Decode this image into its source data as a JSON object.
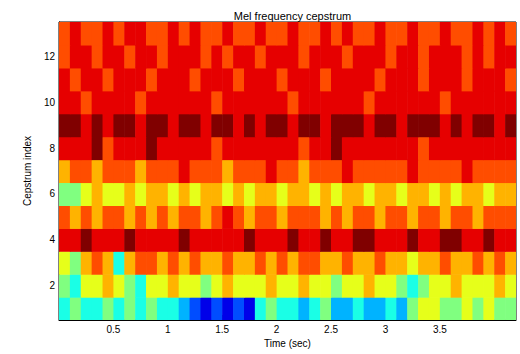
{
  "chart_data": {
    "type": "heatmap",
    "title": "Mel frequency cepstrum",
    "x_label": "Time (sec)",
    "y_label": "Cepstrum index",
    "x_edges": [
      0,
      0.1,
      0.2,
      0.3,
      0.4,
      0.5,
      0.6,
      0.7,
      0.8,
      0.9,
      1,
      1.1,
      1.2,
      1.3,
      1.4,
      1.5,
      1.6,
      1.7,
      1.8,
      1.9,
      2,
      2.1,
      2.2,
      2.3,
      2.4,
      2.5,
      2.6,
      2.7,
      2.8,
      2.9,
      3,
      3.1,
      3.2,
      3.3,
      3.4,
      3.5,
      3.6,
      3.7,
      3.8,
      3.9,
      4,
      4.1,
      4.2
    ],
    "y": [
      1,
      2,
      3,
      4,
      5,
      6,
      7,
      8,
      9,
      10,
      11,
      12,
      13
    ],
    "z": [
      [
        4,
        5,
        4,
        4,
        5,
        4,
        5,
        4,
        5,
        4,
        4,
        3,
        2,
        1,
        2,
        1,
        2,
        1,
        4,
        5,
        4,
        4,
        3,
        4,
        5,
        3,
        3,
        4,
        3,
        3,
        4,
        3,
        5,
        6,
        6,
        5,
        5,
        6,
        5,
        6,
        5,
        5
      ],
      [
        5,
        4,
        6,
        6,
        7,
        6,
        5,
        4,
        6,
        6,
        7,
        6,
        6,
        5,
        6,
        7,
        6,
        6,
        6,
        7,
        6,
        6,
        7,
        6,
        6,
        5,
        6,
        6,
        7,
        6,
        6,
        5,
        4,
        5,
        6,
        6,
        7,
        6,
        6,
        6,
        7,
        6
      ],
      [
        6,
        5,
        7,
        8,
        7,
        4,
        7,
        8,
        8,
        7,
        8,
        7,
        8,
        7,
        7,
        8,
        7,
        7,
        8,
        7,
        8,
        7,
        8,
        8,
        7,
        7,
        8,
        7,
        7,
        8,
        7,
        7,
        6,
        7,
        7,
        8,
        7,
        7,
        8,
        7,
        8,
        7
      ],
      [
        9,
        9,
        10,
        9,
        9,
        9,
        10,
        9,
        9,
        9,
        9,
        10,
        9,
        9,
        9,
        9,
        9,
        10,
        9,
        9,
        9,
        10,
        9,
        9,
        10,
        9,
        9,
        10,
        10,
        9,
        9,
        9,
        10,
        9,
        9,
        10,
        10,
        9,
        9,
        10,
        9,
        9
      ],
      [
        8,
        7,
        8,
        7,
        8,
        8,
        7,
        8,
        7,
        8,
        7,
        8,
        8,
        7,
        8,
        9,
        8,
        7,
        8,
        8,
        7,
        8,
        8,
        8,
        7,
        8,
        7,
        8,
        8,
        7,
        8,
        8,
        7,
        8,
        8,
        7,
        8,
        8,
        7,
        8,
        8,
        8
      ],
      [
        5,
        5,
        6,
        7,
        6,
        6,
        7,
        6,
        7,
        7,
        6,
        7,
        6,
        7,
        7,
        6,
        7,
        6,
        7,
        7,
        6,
        7,
        7,
        6,
        7,
        6,
        7,
        7,
        6,
        7,
        7,
        6,
        7,
        7,
        6,
        7,
        6,
        7,
        7,
        6,
        7,
        7
      ],
      [
        7,
        8,
        8,
        7,
        8,
        8,
        8,
        7,
        8,
        8,
        8,
        9,
        8,
        8,
        8,
        7,
        8,
        8,
        8,
        9,
        8,
        8,
        7,
        8,
        8,
        8,
        9,
        8,
        8,
        8,
        8,
        8,
        9,
        8,
        8,
        8,
        8,
        9,
        8,
        8,
        8,
        8
      ],
      [
        9,
        9,
        9,
        10,
        8,
        9,
        9,
        9,
        10,
        9,
        9,
        9,
        9,
        9,
        8,
        9,
        9,
        9,
        9,
        9,
        9,
        9,
        8,
        9,
        9,
        10,
        9,
        9,
        9,
        9,
        9,
        9,
        9,
        8,
        9,
        9,
        9,
        9,
        9,
        9,
        9,
        9
      ],
      [
        10,
        10,
        9,
        10,
        9,
        10,
        10,
        9,
        10,
        10,
        9,
        10,
        10,
        9,
        10,
        10,
        9,
        10,
        9,
        10,
        10,
        9,
        10,
        10,
        9,
        10,
        10,
        10,
        9,
        10,
        10,
        9,
        10,
        10,
        10,
        9,
        10,
        9,
        10,
        10,
        9,
        10
      ],
      [
        9,
        9,
        8,
        9,
        9,
        9,
        9,
        8,
        9,
        9,
        9,
        9,
        9,
        9,
        8,
        9,
        9,
        9,
        9,
        9,
        9,
        8,
        9,
        9,
        9,
        9,
        9,
        9,
        8,
        9,
        9,
        9,
        9,
        9,
        9,
        8,
        9,
        9,
        9,
        9,
        9,
        9
      ],
      [
        9,
        8,
        9,
        9,
        8,
        9,
        9,
        9,
        8,
        9,
        9,
        9,
        8,
        9,
        9,
        9,
        8,
        9,
        9,
        9,
        8,
        9,
        9,
        9,
        8,
        9,
        9,
        9,
        9,
        8,
        9,
        9,
        9,
        8,
        9,
        9,
        9,
        8,
        9,
        9,
        9,
        8
      ],
      [
        8,
        9,
        9,
        8,
        9,
        9,
        8,
        9,
        9,
        8,
        9,
        9,
        9,
        8,
        9,
        8,
        9,
        9,
        8,
        9,
        9,
        9,
        8,
        9,
        9,
        9,
        8,
        9,
        9,
        9,
        8,
        9,
        9,
        8,
        9,
        9,
        9,
        8,
        9,
        8,
        9,
        9
      ],
      [
        8,
        9,
        8,
        8,
        9,
        8,
        9,
        9,
        8,
        8,
        9,
        8,
        9,
        8,
        8,
        9,
        8,
        8,
        9,
        8,
        8,
        9,
        8,
        8,
        9,
        8,
        9,
        8,
        8,
        9,
        8,
        8,
        9,
        8,
        8,
        9,
        8,
        8,
        9,
        8,
        9,
        8
      ]
    ],
    "zlim": [
      0,
      10
    ],
    "xlim": [
      0,
      4.2
    ],
    "xticks": [
      0.5,
      1,
      1.5,
      2,
      2.5,
      3,
      3.5
    ],
    "ylim": [
      0.5,
      13.5
    ],
    "yticks": [
      2,
      4,
      6,
      8,
      10,
      12
    ],
    "grid": false
  }
}
